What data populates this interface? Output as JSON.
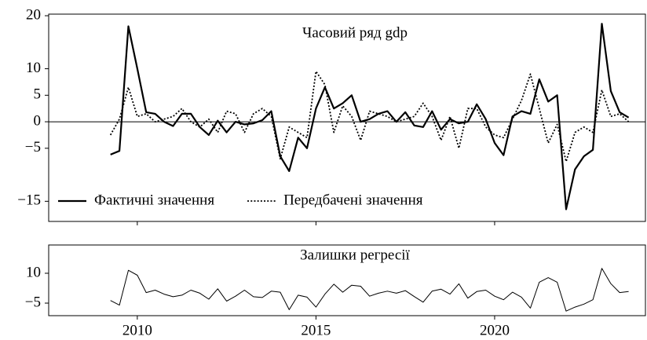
{
  "chart_data": [
    {
      "type": "line",
      "title": "Часовий ряд gdp",
      "xlim": [
        2007.52,
        2024.22
      ],
      "ylim": [
        -18.8,
        20.3
      ],
      "yticks": [
        {
          "value": -15,
          "label": "−15"
        },
        {
          "value": -5,
          "label": "−5"
        },
        0,
        5,
        10,
        20
      ],
      "hline": 0,
      "legend": "lower left",
      "x": [
        2009.25,
        2009.5,
        2009.75,
        2010,
        2010.25,
        2010.5,
        2010.75,
        2011,
        2011.25,
        2011.5,
        2011.75,
        2012,
        2012.25,
        2012.5,
        2012.75,
        2013,
        2013.25,
        2013.5,
        2013.75,
        2014,
        2014.25,
        2014.5,
        2014.75,
        2015,
        2015.25,
        2015.5,
        2015.75,
        2016,
        2016.25,
        2016.5,
        2016.75,
        2017,
        2017.25,
        2017.5,
        2017.75,
        2018,
        2018.25,
        2018.5,
        2018.75,
        2019,
        2019.25,
        2019.5,
        2019.75,
        2020,
        2020.25,
        2020.5,
        2020.75,
        2021,
        2021.25,
        2021.5,
        2021.75,
        2022,
        2022.25,
        2022.5,
        2022.75,
        2023,
        2023.25,
        2023.5,
        2023.75
      ],
      "series": [
        {
          "name": "Фактичні значення",
          "color": "#000000",
          "dash": "solid",
          "values": [
            -6.2,
            -5.5,
            18,
            10,
            1.8,
            1.5,
            0,
            -0.8,
            1.5,
            1.5,
            -1,
            -2.5,
            0.2,
            -2,
            0,
            -0.5,
            -0.3,
            0.3,
            2,
            -6.5,
            -9.3,
            -3,
            -5,
            2.5,
            6.5,
            2.5,
            3.5,
            5,
            0,
            0.5,
            1.5,
            2,
            0,
            1.8,
            -0.7,
            -1,
            2,
            -1.5,
            0.5,
            -0.3,
            0,
            3.3,
            0.5,
            -4,
            -6.3,
            1,
            2,
            1.5,
            8,
            3.8,
            5,
            -16.5,
            -9,
            -6.5,
            -5.3,
            18.5,
            5.8,
            1.8,
            0.8
          ]
        },
        {
          "name": "Передбачені значення",
          "color": "#000000",
          "dash": "dotted",
          "values": [
            -2.5,
            0.5,
            6.5,
            1,
            1.5,
            0,
            0.5,
            1,
            2.5,
            0,
            -1,
            0.5,
            -2,
            2,
            1.5,
            -2,
            1.5,
            2.5,
            1,
            -7,
            -1,
            -2,
            -3,
            9.5,
            7,
            -2,
            3,
            1,
            -3.5,
            2,
            1.5,
            1,
            0,
            0.5,
            1,
            3.5,
            1,
            -3.5,
            1,
            -5,
            2.5,
            2.5,
            -1,
            -2.5,
            -3,
            0.5,
            4,
            9,
            2.5,
            -4,
            -0.5,
            -7.5,
            -2,
            -1,
            -2,
            6,
            1,
            1.5,
            0
          ]
        }
      ]
    },
    {
      "type": "line",
      "title": "Залишки регресії",
      "xlim": [
        2007.52,
        2024.22
      ],
      "ylim": [
        -11.3,
        24.2
      ],
      "yticks": [
        {
          "value": -5,
          "label": "−5"
        },
        10
      ],
      "xticks": [
        2010,
        2015,
        2020
      ],
      "x": [
        2009.25,
        2009.5,
        2009.75,
        2010,
        2010.25,
        2010.5,
        2010.75,
        2011,
        2011.25,
        2011.5,
        2011.75,
        2012,
        2012.25,
        2012.5,
        2012.75,
        2013,
        2013.25,
        2013.5,
        2013.75,
        2014,
        2014.25,
        2014.5,
        2014.75,
        2015,
        2015.25,
        2015.5,
        2015.75,
        2016,
        2016.25,
        2016.5,
        2016.75,
        2017,
        2017.25,
        2017.5,
        2017.75,
        2018,
        2018.25,
        2018.5,
        2018.75,
        2019,
        2019.25,
        2019.5,
        2019.75,
        2020,
        2020.25,
        2020.5,
        2020.75,
        2021,
        2021.25,
        2021.5,
        2021.75,
        2022,
        2022.25,
        2022.5,
        2022.75,
        2023,
        2023.25,
        2023.5,
        2023.75
      ],
      "series": [
        {
          "color": "#000000",
          "dash": "thin",
          "values": [
            -3.7,
            -6,
            11.5,
            9,
            0.3,
            1.5,
            -0.5,
            -1.8,
            -1,
            1.5,
            0,
            -3,
            2.2,
            -4,
            -1.5,
            1.5,
            -1.8,
            -2.2,
            1,
            0.5,
            -8.3,
            -1,
            -2,
            -7,
            -0.5,
            4.5,
            0.5,
            4,
            3.5,
            -1.5,
            0,
            1,
            0,
            1.3,
            -1.7,
            -4.5,
            1,
            2,
            -0.5,
            4.7,
            -2.5,
            0.8,
            1.5,
            -1.5,
            -3.3,
            0.5,
            -2,
            -7.5,
            5.5,
            7.8,
            5.5,
            -9,
            -7,
            -5.5,
            -3.3,
            12.5,
            4.8,
            0.3,
            0.8
          ]
        }
      ]
    }
  ]
}
